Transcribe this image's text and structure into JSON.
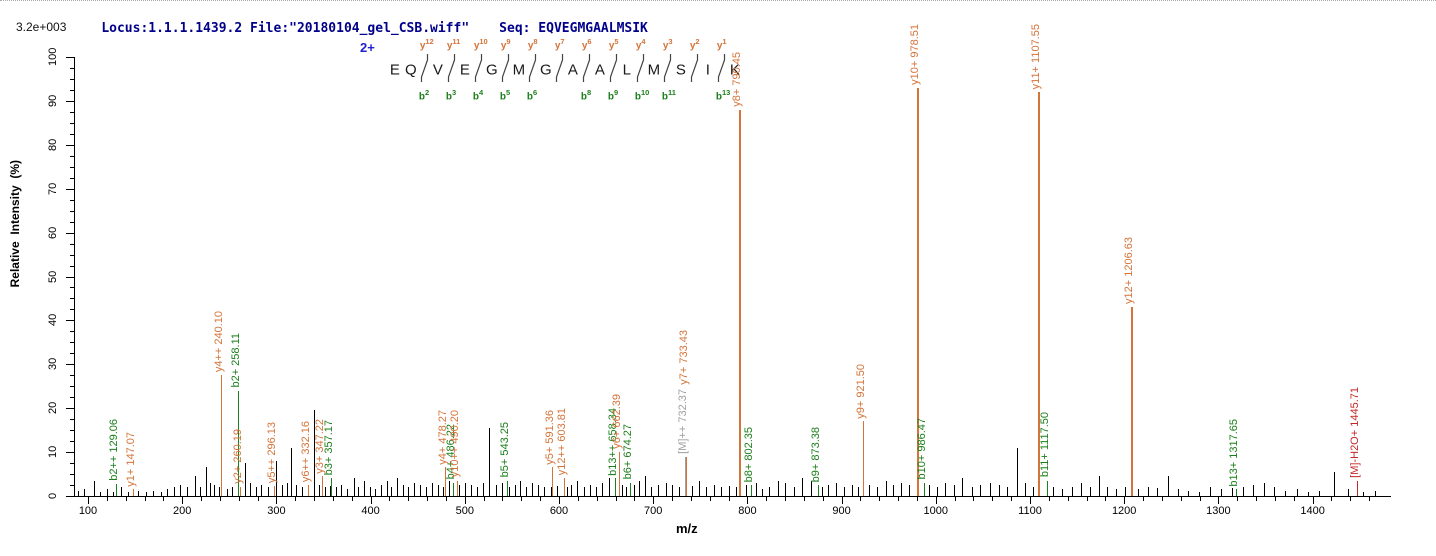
{
  "header": {
    "title": "Locus:1.1.1.1439.2 File:\"20180104_gel_CSB.wiff\"",
    "seq": "Seq: EQVEGMGAALMSIK",
    "max_intensity": "3.2e+003"
  },
  "ladder": {
    "charge": "2+",
    "residues": [
      "E",
      "Q",
      "V",
      "E",
      "G",
      "M",
      "G",
      "A",
      "A",
      "L",
      "M",
      "S",
      "I",
      "K"
    ],
    "boundaries": [
      {
        "gap": 1,
        "y": "12",
        "b": "2"
      },
      {
        "gap": 2,
        "y": "11",
        "b": "3"
      },
      {
        "gap": 3,
        "y": "10",
        "b": "4"
      },
      {
        "gap": 4,
        "y": "9",
        "b": "5"
      },
      {
        "gap": 5,
        "y": "8",
        "b": "6"
      },
      {
        "gap": 6,
        "y": "7",
        "b": null
      },
      {
        "gap": 7,
        "y": "6",
        "b": "8"
      },
      {
        "gap": 8,
        "y": "5",
        "b": "9"
      },
      {
        "gap": 9,
        "y": "4",
        "b": "10"
      },
      {
        "gap": 10,
        "y": "3",
        "b": "11"
      },
      {
        "gap": 11,
        "y": "2",
        "b": null
      },
      {
        "gap": 12,
        "y": "1",
        "b": "13"
      }
    ]
  },
  "axes": {
    "x_label": "m/z",
    "y_label": "Relative  Intensity  (%)",
    "x_ticks": [
      100,
      200,
      300,
      400,
      500,
      600,
      700,
      800,
      900,
      1000,
      1100,
      1200,
      1300,
      1400
    ],
    "y_ticks": [
      0,
      10,
      20,
      30,
      40,
      50,
      60,
      70,
      80,
      90,
      100
    ],
    "x_minor_step": 20,
    "y_minor_step": 2.5,
    "x_minor_max": 1460
  },
  "colors": {
    "y_ion": "#D4743A",
    "b_ion": "#1B7F1B",
    "precursor": "#A0A0A0",
    "neutral_loss": "#C22828",
    "noise": "#000000",
    "title": "#00008B",
    "charge": "#2222CC"
  },
  "chart_data": {
    "type": "bar",
    "subtype": "ms2-mass-spectrum",
    "xlabel": "m/z",
    "ylabel": "Relative Intensity (%)",
    "xlim": [
      86,
      1482
    ],
    "ylim": [
      0,
      100
    ],
    "labeled_peaks": [
      {
        "label": "b2++ 129.06",
        "mz": 129.06,
        "pct": 2.8,
        "type": "b"
      },
      {
        "label": "y1+ 147.07",
        "mz": 147.07,
        "pct": 1.5,
        "type": "y"
      },
      {
        "label": "y4++ 240.10",
        "mz": 240.1,
        "pct": 27.5,
        "type": "y"
      },
      {
        "label": "b2+ 258.11",
        "mz": 258.11,
        "pct": 24,
        "type": "b"
      },
      {
        "label": "y2+ 260.19",
        "mz": 260.19,
        "pct": 2,
        "type": "y"
      },
      {
        "label": "y5++ 296.13",
        "mz": 296.13,
        "pct": 2.2,
        "type": "y"
      },
      {
        "label": "y6++ 332.16",
        "mz": 332.16,
        "pct": 2.5,
        "type": "y"
      },
      {
        "label": "y3+ 347.22",
        "mz": 347.22,
        "pct": 4.5,
        "type": "y"
      },
      {
        "label": "b3+ 357.17",
        "mz": 357.17,
        "pct": 4,
        "type": "b"
      },
      {
        "label": "y4+ 478.27",
        "mz": 478.27,
        "pct": 6.5,
        "type": "y"
      },
      {
        "label": "b4+ 486.22",
        "mz": 486.22,
        "pct": 3,
        "type": "b"
      },
      {
        "label": "y10++ 490.20",
        "mz": 490.2,
        "pct": 3.5,
        "type": "y"
      },
      {
        "label": "b5+ 543.25",
        "mz": 543.25,
        "pct": 3.5,
        "type": "b"
      },
      {
        "label": "y5+ 591.36",
        "mz": 591.36,
        "pct": 6.5,
        "type": "y"
      },
      {
        "label": "y12++ 603.81",
        "mz": 603.81,
        "pct": 4,
        "type": "y"
      },
      {
        "label": "b13++ 658.34",
        "mz": 658.34,
        "pct": 4,
        "type": "b"
      },
      {
        "label": "y6+ 662.39",
        "mz": 662.39,
        "pct": 10,
        "type": "y"
      },
      {
        "label": "b6+ 674.27",
        "mz": 674.27,
        "pct": 3,
        "type": "b"
      },
      {
        "label": "[M]++ 732.37",
        "mz": 732.37,
        "pct": 9,
        "type": "precursor"
      },
      {
        "label": "y7+ 733.43",
        "mz": 733.43,
        "pct": 9,
        "type": "y"
      },
      {
        "label": "y8+ 790.45",
        "mz": 790.45,
        "pct": 88,
        "type": "y"
      },
      {
        "label": "b8+ 802.35",
        "mz": 802.35,
        "pct": 2.5,
        "type": "b"
      },
      {
        "label": "b9+ 873.38",
        "mz": 873.38,
        "pct": 2.5,
        "type": "b"
      },
      {
        "label": "y9+ 921.50",
        "mz": 921.5,
        "pct": 17,
        "type": "y"
      },
      {
        "label": "y10+ 978.51",
        "mz": 978.51,
        "pct": 93,
        "type": "y"
      },
      {
        "label": "b10+ 986.47",
        "mz": 986.47,
        "pct": 3,
        "type": "b"
      },
      {
        "label": "y11+ 1107.55",
        "mz": 1107.55,
        "pct": 92,
        "type": "y"
      },
      {
        "label": "b11+ 1117.50",
        "mz": 1117.5,
        "pct": 3.5,
        "type": "b"
      },
      {
        "label": "y12+ 1206.63",
        "mz": 1206.63,
        "pct": 43,
        "type": "y"
      },
      {
        "label": "b13+ 1317.65",
        "mz": 1317.65,
        "pct": 1.5,
        "type": "b"
      },
      {
        "label": "[M]-H2O+ 1445.71",
        "mz": 1445.71,
        "pct": 3.5,
        "type": "loss"
      }
    ],
    "noise_peaks": [
      [
        88,
        1.2
      ],
      [
        95,
        1.5
      ],
      [
        105,
        3.5
      ],
      [
        112,
        1
      ],
      [
        119,
        1.5
      ],
      [
        126,
        1
      ],
      [
        134,
        2
      ],
      [
        141,
        1
      ],
      [
        152,
        1.2
      ],
      [
        160,
        1
      ],
      [
        168,
        1.2
      ],
      [
        176,
        1
      ],
      [
        183,
        1.5
      ],
      [
        190,
        2
      ],
      [
        197,
        2.5
      ],
      [
        204,
        2
      ],
      [
        212,
        4.5
      ],
      [
        218,
        2
      ],
      [
        224,
        6.5
      ],
      [
        228,
        3
      ],
      [
        233,
        2.5
      ],
      [
        238,
        2
      ],
      [
        246,
        1.5
      ],
      [
        252,
        2
      ],
      [
        266,
        7.5
      ],
      [
        271,
        3
      ],
      [
        277,
        2
      ],
      [
        283,
        2.5
      ],
      [
        290,
        2
      ],
      [
        298,
        8
      ],
      [
        305,
        2.5
      ],
      [
        310,
        3
      ],
      [
        314,
        11
      ],
      [
        320,
        2.5
      ],
      [
        326,
        2
      ],
      [
        333,
        2.2
      ],
      [
        339,
        19.5
      ],
      [
        344,
        2.5
      ],
      [
        350,
        2
      ],
      [
        356,
        2.2
      ],
      [
        362,
        2
      ],
      [
        368,
        2.5
      ],
      [
        374,
        1.5
      ],
      [
        381,
        4
      ],
      [
        386,
        2
      ],
      [
        392,
        3.5
      ],
      [
        398,
        2
      ],
      [
        404,
        1.5
      ],
      [
        410,
        2.5
      ],
      [
        416,
        3.5
      ],
      [
        421,
        2
      ],
      [
        427,
        4
      ],
      [
        433,
        2.5
      ],
      [
        439,
        2
      ],
      [
        445,
        3
      ],
      [
        451,
        2.5
      ],
      [
        458,
        2
      ],
      [
        464,
        3
      ],
      [
        470,
        2.5
      ],
      [
        476,
        2
      ],
      [
        482,
        3.5
      ],
      [
        493,
        2.5
      ],
      [
        499,
        3
      ],
      [
        506,
        2.5
      ],
      [
        512,
        2
      ],
      [
        518,
        3
      ],
      [
        525,
        15.5
      ],
      [
        532,
        2.5
      ],
      [
        538,
        3
      ],
      [
        546,
        2
      ],
      [
        552,
        2.5
      ],
      [
        558,
        3.5
      ],
      [
        564,
        2
      ],
      [
        570,
        3
      ],
      [
        577,
        2.5
      ],
      [
        583,
        2
      ],
      [
        590,
        2
      ],
      [
        597,
        2.2
      ],
      [
        607,
        2
      ],
      [
        612,
        2.5
      ],
      [
        618,
        3.5
      ],
      [
        625,
        2
      ],
      [
        632,
        2.5
      ],
      [
        638,
        2
      ],
      [
        645,
        3
      ],
      [
        652,
        4
      ],
      [
        666,
        2.5
      ],
      [
        670,
        2
      ],
      [
        679,
        2.5
      ],
      [
        684,
        3.5
      ],
      [
        690,
        4.5
      ],
      [
        697,
        2
      ],
      [
        704,
        2.5
      ],
      [
        712,
        3
      ],
      [
        719,
        2.5
      ],
      [
        726,
        2
      ],
      [
        740,
        2.2
      ],
      [
        748,
        3.5
      ],
      [
        755,
        2
      ],
      [
        763,
        2.5
      ],
      [
        771,
        2
      ],
      [
        779,
        2.2
      ],
      [
        787,
        2
      ],
      [
        797,
        2.5
      ],
      [
        808,
        3
      ],
      [
        814,
        1.5
      ],
      [
        822,
        2
      ],
      [
        831,
        3.5
      ],
      [
        839,
        3
      ],
      [
        848,
        2
      ],
      [
        857,
        4
      ],
      [
        866,
        3.5
      ],
      [
        878,
        2
      ],
      [
        884,
        2.5
      ],
      [
        893,
        3
      ],
      [
        901,
        2
      ],
      [
        910,
        2.5
      ],
      [
        916,
        2
      ],
      [
        928,
        2.5
      ],
      [
        937,
        2
      ],
      [
        946,
        3.5
      ],
      [
        954,
        2.5
      ],
      [
        962,
        3
      ],
      [
        971,
        2.5
      ],
      [
        992,
        2.5
      ],
      [
        1000,
        2
      ],
      [
        1009,
        3
      ],
      [
        1018,
        2.5
      ],
      [
        1027,
        4
      ],
      [
        1037,
        2
      ],
      [
        1046,
        2.5
      ],
      [
        1056,
        3
      ],
      [
        1066,
        2.5
      ],
      [
        1075,
        2
      ],
      [
        1085,
        11
      ],
      [
        1094,
        3
      ],
      [
        1102,
        2
      ],
      [
        1123,
        2
      ],
      [
        1133,
        1.5
      ],
      [
        1143,
        2
      ],
      [
        1153,
        3
      ],
      [
        1163,
        2
      ],
      [
        1172,
        4.5
      ],
      [
        1181,
        2
      ],
      [
        1190,
        1.5
      ],
      [
        1200,
        2
      ],
      [
        1214,
        1.5
      ],
      [
        1224,
        2
      ],
      [
        1234,
        1.8
      ],
      [
        1245,
        4.5
      ],
      [
        1256,
        1.5
      ],
      [
        1267,
        1.2
      ],
      [
        1278,
        1
      ],
      [
        1290,
        2
      ],
      [
        1302,
        1.5
      ],
      [
        1313,
        1.8
      ],
      [
        1325,
        2
      ],
      [
        1336,
        2.5
      ],
      [
        1347,
        3
      ],
      [
        1358,
        2
      ],
      [
        1370,
        1.2
      ],
      [
        1382,
        1.5
      ],
      [
        1394,
        1
      ],
      [
        1406,
        1.2
      ],
      [
        1422,
        5.5
      ],
      [
        1436,
        1.5
      ],
      [
        1452,
        1
      ],
      [
        1465,
        1.2
      ]
    ]
  }
}
